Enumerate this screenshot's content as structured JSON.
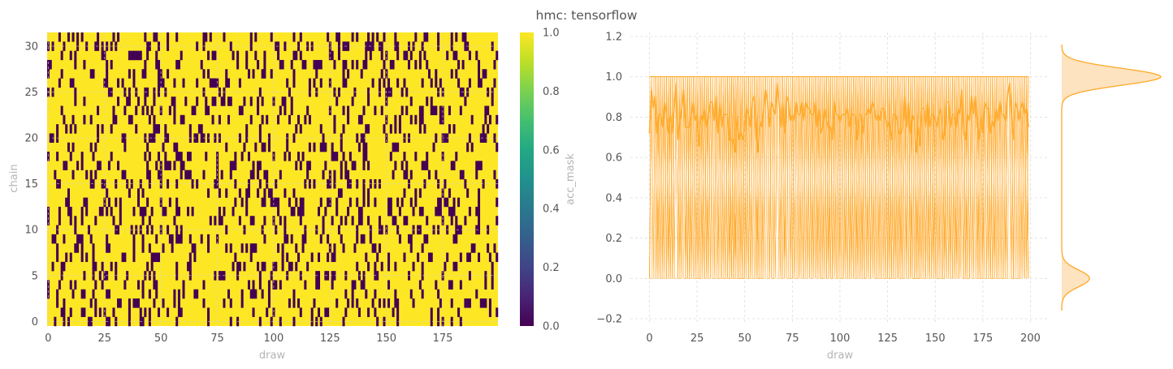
{
  "title": "hmc: tensorflow",
  "chart_data": [
    {
      "type": "heatmap",
      "xlabel": "draw",
      "ylabel": "chain",
      "x_ticks": [
        0,
        25,
        50,
        75,
        100,
        125,
        150,
        175
      ],
      "y_ticks": [
        0,
        5,
        10,
        15,
        20,
        25,
        30
      ],
      "n_draws": 200,
      "n_chains": 32,
      "colorbar": {
        "label": "acc_mask",
        "ticks": [
          0.0,
          0.2,
          0.4,
          0.6,
          0.8,
          1.0
        ],
        "ticklabels": [
          "0.0",
          "0.2",
          "0.4",
          "0.6",
          "0.8",
          "1.0"
        ],
        "colormap": "viridis",
        "vmin": 0,
        "vmax": 1
      },
      "values_note": "binary acceptance mask, ~0.81 mean acceptance",
      "acceptance_rate": 0.81,
      "grid": true
    },
    {
      "type": "line",
      "xlabel": "draw",
      "ylabel": "",
      "xlim": [
        -10,
        210
      ],
      "ylim": [
        -0.22,
        1.22
      ],
      "x_ticks": [
        0,
        25,
        50,
        75,
        100,
        125,
        150,
        175,
        200
      ],
      "y_ticks": [
        -0.2,
        0.0,
        0.2,
        0.4,
        0.6,
        0.8,
        1.0,
        1.2
      ],
      "y_ticklabels": [
        "−0.2",
        "0.0",
        "0.2",
        "0.4",
        "0.6",
        "0.8",
        "1.0",
        "1.2"
      ],
      "series_color": "#ffa826",
      "series": [
        {
          "values_note": "per-chain acceptance traces oscillating between 0.0 and 1.0 for draws 0–199"
        },
        {
          "values_note": "mean acceptance across chains ≈ 0.8 (0.75–0.88) for draws 0–199"
        }
      ],
      "marginal": {
        "type": "kde",
        "orientation": "vertical",
        "modes": [
          0.0,
          1.0
        ],
        "mode_heights": [
          0.28,
          1.0
        ],
        "fill": "#fde3bf",
        "edge": "#ffa826"
      },
      "grid": true
    }
  ]
}
